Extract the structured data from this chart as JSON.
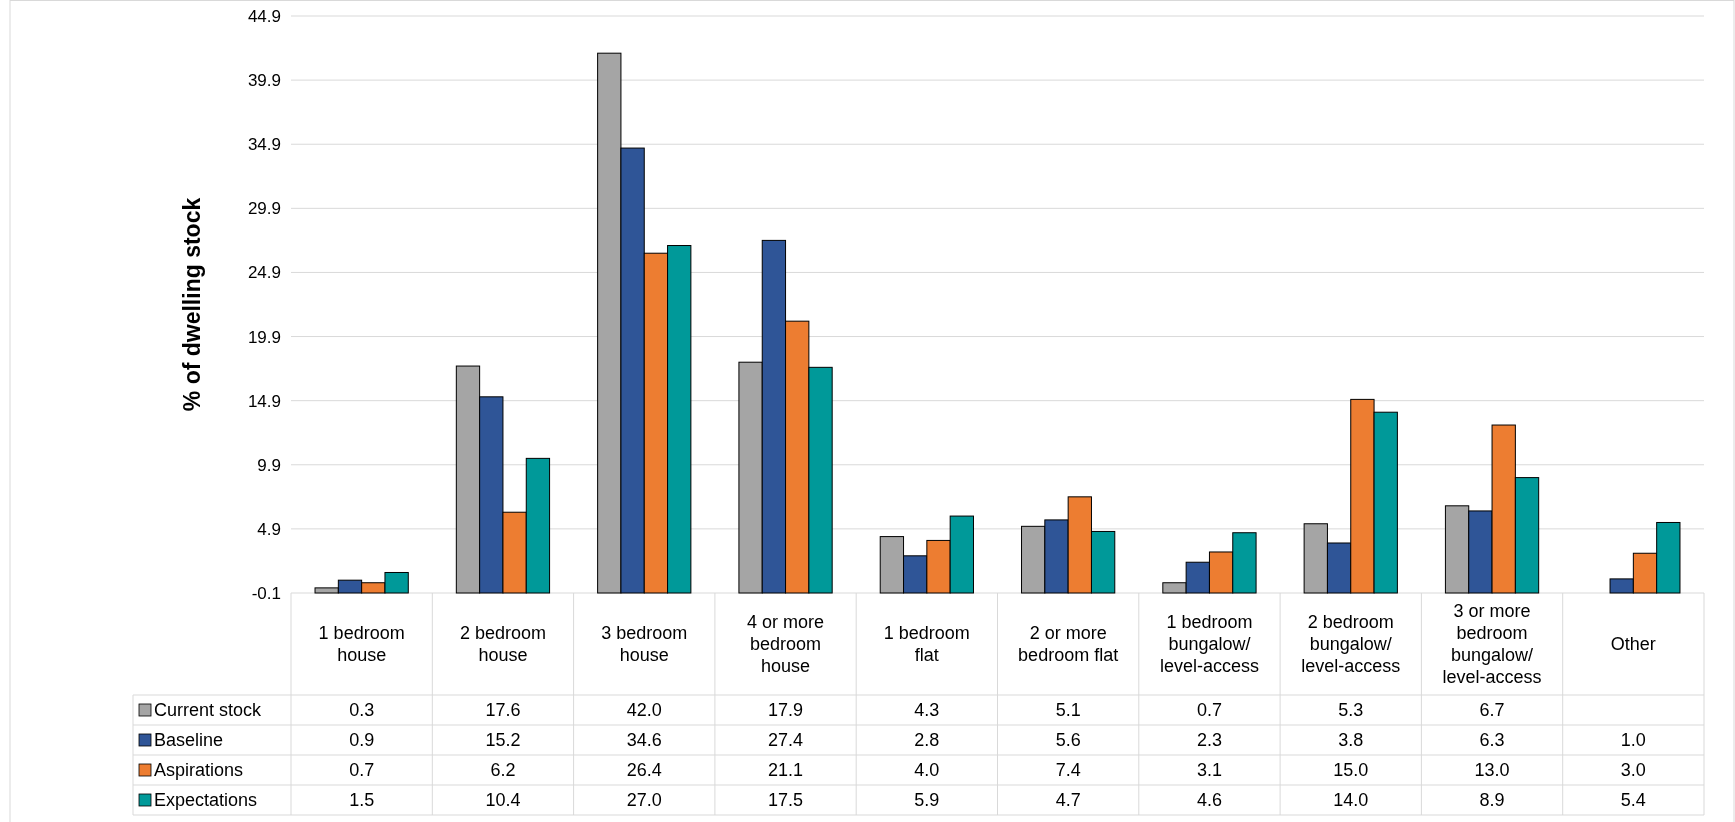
{
  "chart_data": {
    "type": "bar",
    "ylabel": "% of dwelling stock",
    "categories": [
      "1 bedroom house",
      "2 bedroom house",
      "3 bedroom house",
      "4 or more bedroom house",
      "1 bedroom flat",
      "2 or more bedroom flat",
      "1 bedroom bungalow/ level-access",
      "2 bedroom bungalow/ level-access",
      "3 or more bedroom bungalow/ level-access",
      "Other"
    ],
    "series": [
      {
        "name": "Current stock",
        "color": "#a5a5a5",
        "values": [
          0.3,
          17.6,
          42.0,
          17.9,
          4.3,
          5.1,
          0.7,
          5.3,
          6.7,
          null
        ],
        "value_labels": [
          "0.3",
          "17.6",
          "42.0",
          "17.9",
          "4.3",
          "5.1",
          "0.7",
          "5.3",
          "6.7",
          null
        ]
      },
      {
        "name": "Baseline",
        "color": "#2f5597",
        "values": [
          0.9,
          15.2,
          34.6,
          27.4,
          2.8,
          5.6,
          2.3,
          3.8,
          6.3,
          1.0
        ],
        "value_labels": [
          "0.9",
          "15.2",
          "34.6",
          "27.4",
          "2.8",
          "5.6",
          "2.3",
          "3.8",
          "6.3",
          "1.0"
        ]
      },
      {
        "name": "Aspirations",
        "color": "#ed7d31",
        "values": [
          0.7,
          6.2,
          26.4,
          21.1,
          4.0,
          7.4,
          3.1,
          15.0,
          13.0,
          3.0
        ],
        "value_labels": [
          "0.7",
          "6.2",
          "26.4",
          "21.1",
          "4.0",
          "7.4",
          "3.1",
          "15.0",
          "13.0",
          "3.0"
        ]
      },
      {
        "name": "Expectations",
        "color": "#009999",
        "values": [
          1.5,
          10.4,
          27.0,
          17.5,
          5.9,
          4.7,
          4.6,
          14.0,
          8.9,
          5.4
        ],
        "value_labels": [
          "1.5",
          "10.4",
          "27.0",
          "17.5",
          "5.9",
          "4.7",
          "4.6",
          "14.0",
          "8.9",
          "5.4"
        ]
      }
    ],
    "ylim": [
      -0.1,
      44.9
    ],
    "yticks": [
      -0.1,
      4.9,
      9.9,
      14.9,
      19.9,
      24.9,
      29.9,
      34.9,
      39.9,
      44.9
    ],
    "grid": "y",
    "legend": "bottom left"
  }
}
